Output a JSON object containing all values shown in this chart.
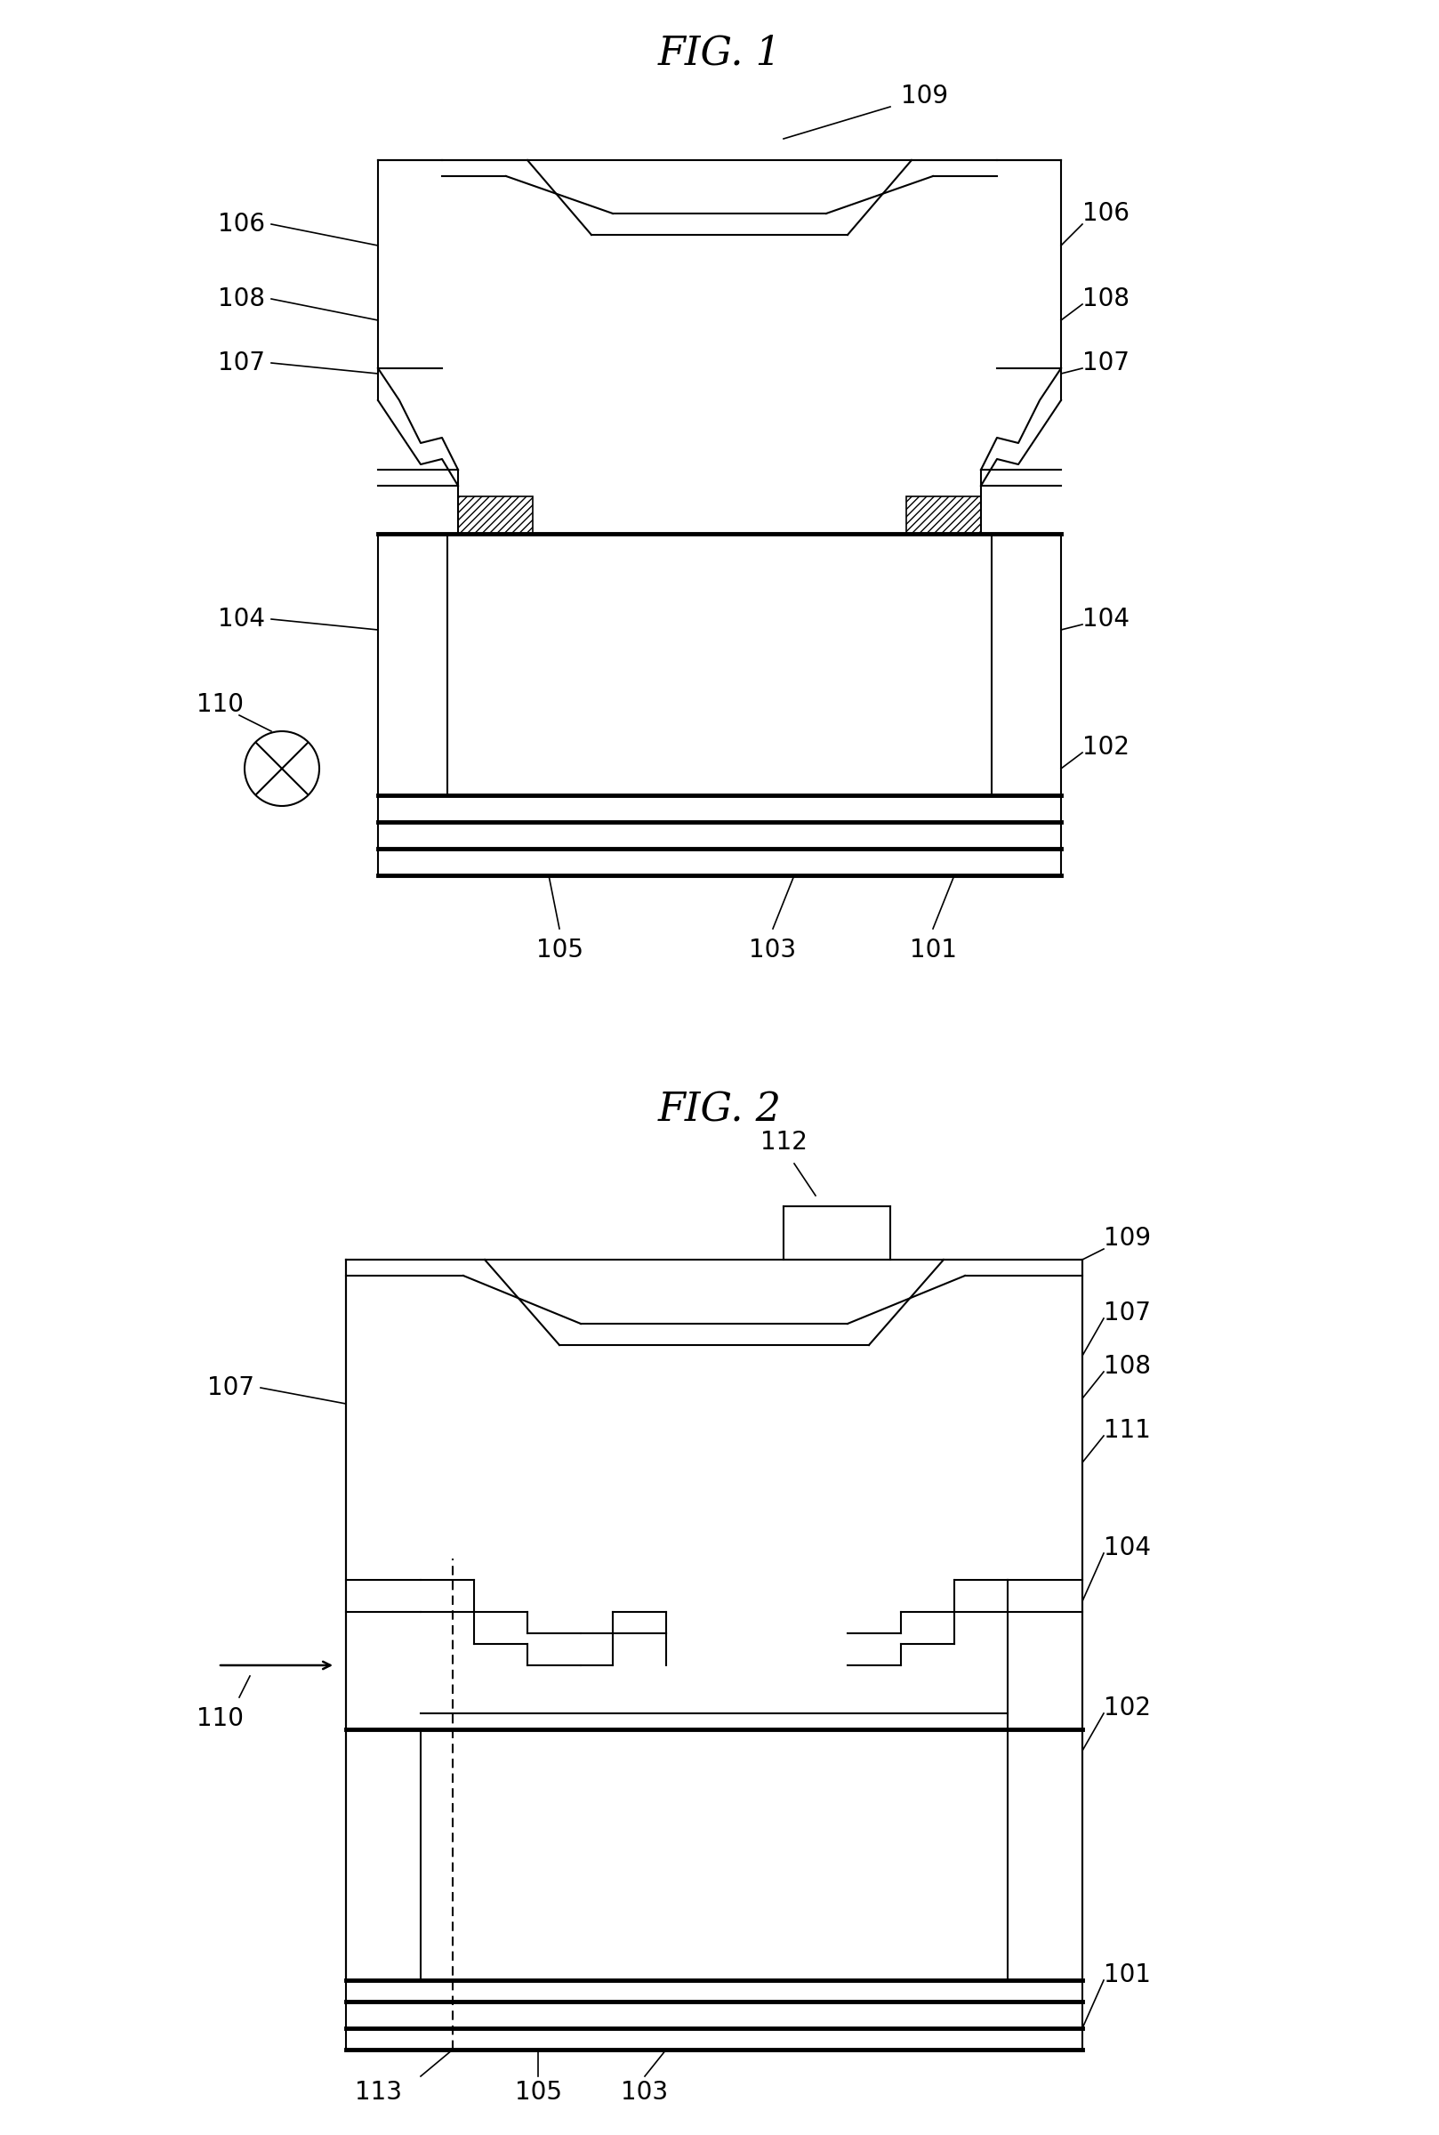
{
  "fig1_title": "FIG. 1",
  "fig2_title": "FIG. 2",
  "bg_color": "#ffffff",
  "line_color": "#000000",
  "lw": 1.5,
  "tlw": 3.5,
  "title_fs": 32,
  "label_fs": 20
}
